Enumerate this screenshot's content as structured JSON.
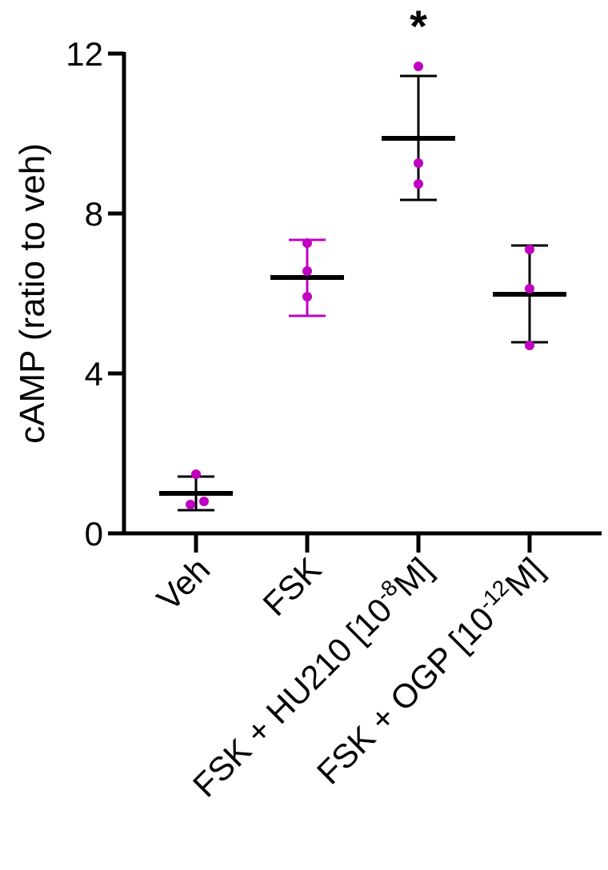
{
  "chart_data": {
    "type": "scatter",
    "title": "",
    "xlabel": "",
    "ylabel": "cAMP (ratio to veh)",
    "ylim": [
      0,
      12
    ],
    "yticks": [
      "0",
      "4",
      "8",
      "12"
    ],
    "ytick_values": [
      0,
      4,
      8,
      12
    ],
    "grid": false,
    "categories": [
      {
        "parts": [
          {
            "t": "Veh"
          }
        ]
      },
      {
        "parts": [
          {
            "t": "FSK"
          }
        ]
      },
      {
        "parts": [
          {
            "t": "FSK + HU210 [10"
          },
          {
            "t": "-8",
            "sup": true
          },
          {
            "t": "M]"
          }
        ]
      },
      {
        "parts": [
          {
            "t": "FSK + OGP [10"
          },
          {
            "t": "-12",
            "sup": true
          },
          {
            "t": "M]"
          }
        ]
      }
    ],
    "category_names": [
      "Veh",
      "FSK",
      "FSK + HU210 [10^-8 M]",
      "FSK + OGP [10^-12 M]"
    ],
    "groups": [
      {
        "points": [
          1.48,
          0.72,
          0.8
        ],
        "mean": 1.0,
        "err_low": 0.58,
        "err_high": 1.42,
        "bar_color": "#000000"
      },
      {
        "points": [
          7.26,
          6.56,
          5.92
        ],
        "mean": 6.4,
        "err_low": 5.44,
        "err_high": 7.34,
        "bar_color": "#C000C0"
      },
      {
        "points": [
          11.68,
          9.26,
          8.74
        ],
        "mean": 9.88,
        "err_low": 8.34,
        "err_high": 11.44,
        "bar_color": "#000000"
      },
      {
        "points": [
          7.1,
          6.12,
          4.7
        ],
        "mean": 5.98,
        "err_low": 4.78,
        "err_high": 7.2,
        "bar_color": "#000000"
      }
    ],
    "point_color": "#C000C0",
    "annotations": [
      {
        "text": "*",
        "category": "FSK + HU210 [10^-8 M]"
      }
    ]
  }
}
